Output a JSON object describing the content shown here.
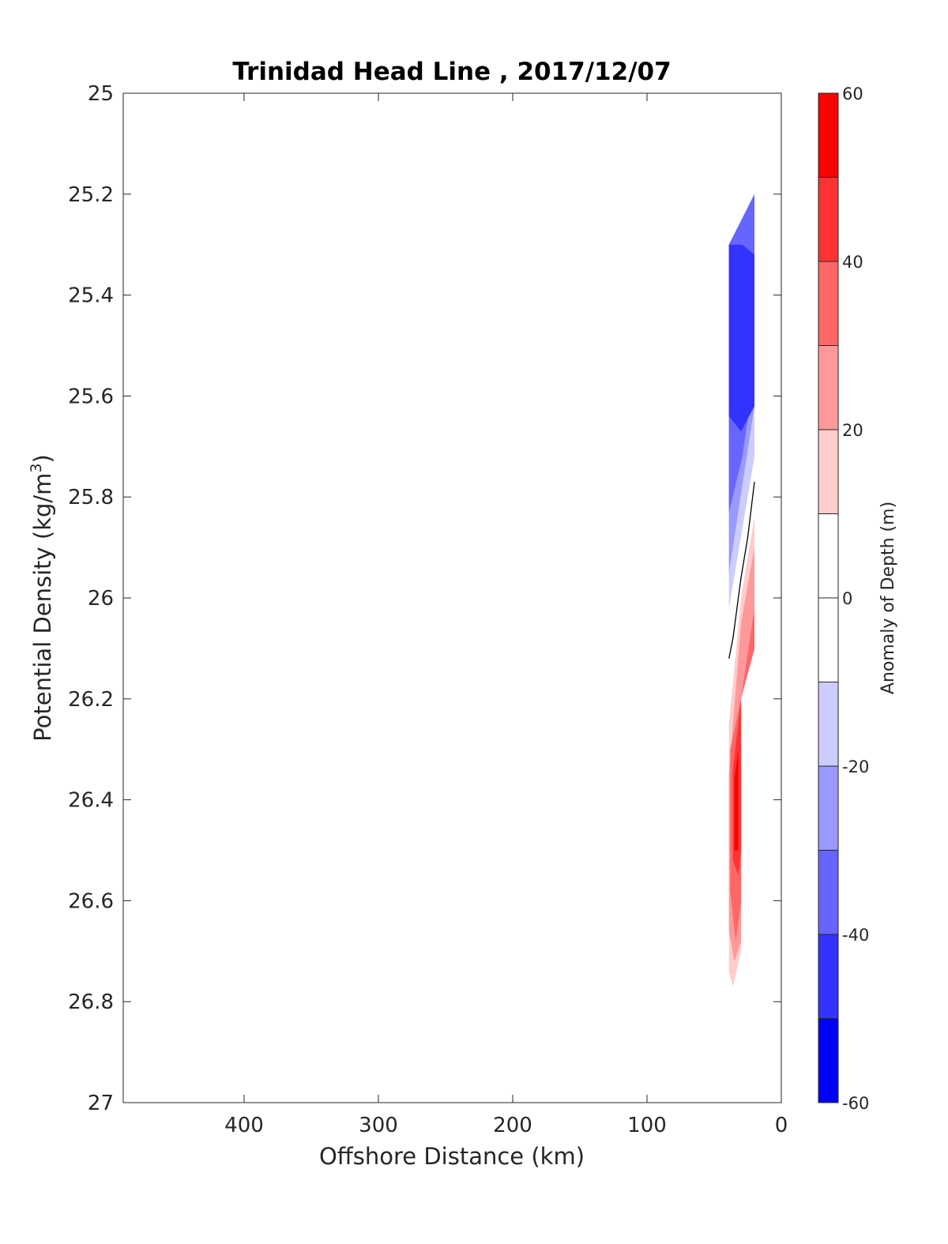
{
  "chart_data": {
    "type": "contour-section",
    "title": "Trinidad Head Line , 2017/12/07",
    "xlabel": "Offshore Distance (km)",
    "ylabel_main": "Potential Density (kg/m",
    "ylabel_sup": "3",
    "ylabel_close": ")",
    "xlim": [
      490,
      0
    ],
    "ylim": [
      25,
      27
    ],
    "x_reversed": true,
    "y_reversed": true,
    "xticks": [
      400,
      300,
      200,
      100,
      0
    ],
    "yticks": [
      25,
      25.2,
      25.4,
      25.6,
      25.8,
      26,
      26.2,
      26.4,
      26.6,
      26.8,
      27
    ],
    "ytick_labels": [
      "25",
      "25.2",
      "25.4",
      "25.6",
      "25.8",
      "26",
      "26.2",
      "26.4",
      "26.6",
      "26.8",
      "27"
    ],
    "colorbar": {
      "label": "Anomaly of Depth (m)",
      "range": [
        -60,
        60
      ],
      "ticks": [
        60,
        40,
        20,
        0,
        -20,
        -40,
        -60
      ],
      "tick_labels": [
        "60",
        "40",
        "20",
        "0",
        "-20",
        "-40",
        "-60"
      ],
      "levels": [
        {
          "from": -60,
          "to": -50,
          "color": "#0000ff"
        },
        {
          "from": -50,
          "to": -40,
          "color": "#3333ff"
        },
        {
          "from": -40,
          "to": -30,
          "color": "#6666ff"
        },
        {
          "from": -30,
          "to": -20,
          "color": "#9999ff"
        },
        {
          "from": -20,
          "to": -10,
          "color": "#ccccff"
        },
        {
          "from": -10,
          "to": 0,
          "color": "#ffffff"
        },
        {
          "from": 0,
          "to": 10,
          "color": "#ffffff"
        },
        {
          "from": 10,
          "to": 20,
          "color": "#ffcccc"
        },
        {
          "from": 20,
          "to": 30,
          "color": "#ff9999"
        },
        {
          "from": 30,
          "to": 40,
          "color": "#ff6666"
        },
        {
          "from": 40,
          "to": 50,
          "color": "#ff3333"
        },
        {
          "from": 50,
          "to": 60,
          "color": "#ff0000"
        }
      ]
    },
    "regions": [
      {
        "name": "light-blue",
        "color": "#ccccff",
        "points": [
          [
            20,
            25.2
          ],
          [
            39,
            25.3
          ],
          [
            39,
            26.02
          ],
          [
            20,
            25.72
          ]
        ]
      },
      {
        "name": "blue-1",
        "color": "#9999ff",
        "points": [
          [
            20,
            25.2
          ],
          [
            39,
            25.3
          ],
          [
            39,
            25.95
          ],
          [
            20,
            25.62
          ]
        ]
      },
      {
        "name": "blue-2",
        "color": "#6666ff",
        "points": [
          [
            20,
            25.2
          ],
          [
            39,
            25.3
          ],
          [
            39,
            25.83
          ],
          [
            29,
            25.72
          ],
          [
            20,
            25.55
          ]
        ]
      },
      {
        "name": "blue-3",
        "color": "#3333ff",
        "points": [
          [
            20,
            25.32
          ],
          [
            29,
            25.3
          ],
          [
            39,
            25.3
          ],
          [
            39,
            25.64
          ],
          [
            30,
            25.67
          ],
          [
            20,
            25.62
          ]
        ]
      },
      {
        "name": "pink-1",
        "color": "#ffcccc",
        "points": [
          [
            20,
            25.84
          ],
          [
            30,
            26.0
          ],
          [
            39,
            26.25
          ],
          [
            39,
            26.74
          ],
          [
            36,
            26.77
          ],
          [
            30,
            26.7
          ],
          [
            30,
            26.2
          ],
          [
            20,
            26.1
          ]
        ]
      },
      {
        "name": "pink-2",
        "color": "#ff9999",
        "points": [
          [
            20,
            25.9
          ],
          [
            30,
            26.05
          ],
          [
            39,
            26.35
          ],
          [
            39,
            26.66
          ],
          [
            35,
            26.72
          ],
          [
            30,
            26.68
          ],
          [
            30,
            26.2
          ],
          [
            20,
            26.1
          ]
        ]
      },
      {
        "name": "red-1",
        "color": "#ff6666",
        "points": [
          [
            20,
            26.02
          ],
          [
            30,
            26.2
          ],
          [
            38,
            26.3
          ],
          [
            38,
            26.58
          ],
          [
            34,
            26.68
          ],
          [
            30,
            26.6
          ],
          [
            30,
            26.2
          ],
          [
            20,
            26.1
          ]
        ]
      },
      {
        "name": "red-2",
        "color": "#ff3333",
        "points": [
          [
            20,
            26.1
          ],
          [
            30,
            26.2
          ],
          [
            36,
            26.34
          ],
          [
            36,
            26.52
          ],
          [
            32,
            26.55
          ],
          [
            30,
            26.5
          ],
          [
            30,
            26.2
          ]
        ]
      },
      {
        "name": "red-3",
        "color": "#ff0000",
        "points": [
          [
            32,
            26.3
          ],
          [
            35,
            26.36
          ],
          [
            35,
            26.5
          ],
          [
            32,
            26.5
          ]
        ]
      }
    ],
    "zero_contour": [
      [
        20,
        25.77
      ],
      [
        25,
        25.88
      ],
      [
        30,
        25.96
      ],
      [
        33,
        26.02
      ],
      [
        36,
        26.08
      ],
      [
        39,
        26.12
      ]
    ],
    "grid": false,
    "legend": "colorbar-right"
  }
}
